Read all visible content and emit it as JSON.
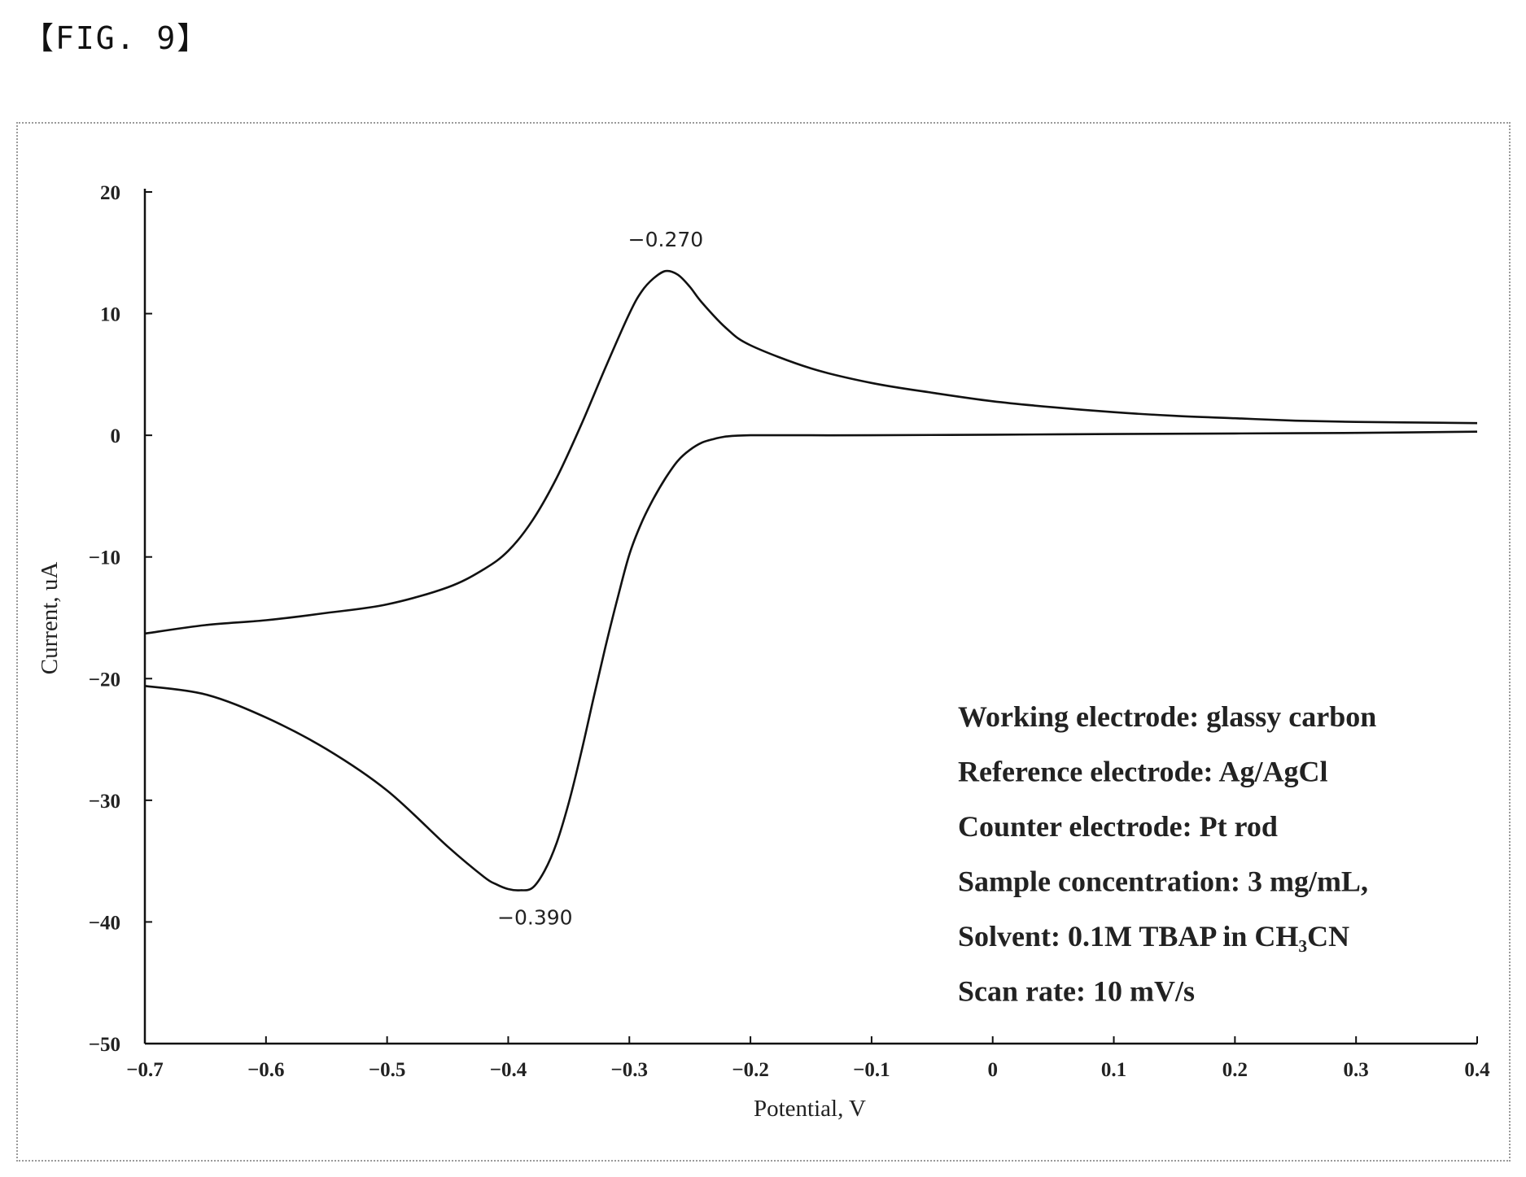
{
  "figure_label": "【FIG. 9】",
  "chart_data": {
    "type": "line",
    "xlabel": "Potential, V",
    "ylabel": "Current, uA",
    "xlim": [
      -0.7,
      0.4
    ],
    "ylim": [
      -50,
      20
    ],
    "x_ticks": [
      "−0.7",
      "−0.6",
      "−0.5",
      "−0.4",
      "−0.3",
      "−0.2",
      "−0.1",
      "0",
      "0.1",
      "0.2",
      "0.3",
      "0.4"
    ],
    "x_tick_values": [
      -0.7,
      -0.6,
      -0.5,
      -0.4,
      -0.3,
      -0.2,
      -0.1,
      0,
      0.1,
      0.2,
      0.3,
      0.4
    ],
    "y_ticks": [
      "20",
      "10",
      "0",
      "−10",
      "−20",
      "−30",
      "−40",
      "−50"
    ],
    "y_tick_values": [
      20,
      10,
      0,
      -10,
      -20,
      -30,
      -40,
      -50
    ],
    "grid": false,
    "series": [
      {
        "x": [
          -0.7,
          -0.65,
          -0.6,
          -0.55,
          -0.5,
          -0.45,
          -0.42,
          -0.4,
          -0.38,
          -0.36,
          -0.34,
          -0.32,
          -0.3,
          -0.29,
          -0.28,
          -0.27,
          -0.26,
          -0.25,
          -0.24,
          -0.22,
          -0.2,
          -0.15,
          -0.1,
          -0.05,
          0,
          0.05,
          0.1,
          0.15,
          0.2,
          0.25,
          0.3,
          0.35,
          0.4
        ],
        "y": [
          -16.3,
          -15.6,
          -15.2,
          -14.6,
          -13.9,
          -12.5,
          -11.0,
          -9.5,
          -7.0,
          -3.5,
          0.8,
          5.5,
          10.0,
          11.8,
          12.9,
          13.5,
          13.2,
          12.2,
          10.9,
          8.8,
          7.4,
          5.5,
          4.3,
          3.5,
          2.8,
          2.3,
          1.9,
          1.6,
          1.4,
          1.2,
          1.1,
          1.05,
          1.0
        ]
      },
      {
        "x": [
          -0.7,
          -0.65,
          -0.6,
          -0.55,
          -0.5,
          -0.45,
          -0.42,
          -0.41,
          -0.4,
          -0.39,
          -0.38,
          -0.37,
          -0.36,
          -0.35,
          -0.34,
          -0.33,
          -0.32,
          -0.31,
          -0.3,
          -0.29,
          -0.28,
          -0.27,
          -0.26,
          -0.25,
          -0.24,
          -0.23,
          -0.22,
          -0.2,
          -0.15,
          -0.1,
          0,
          0.1,
          0.2,
          0.3,
          0.4
        ],
        "y": [
          -20.6,
          -21.3,
          -23.2,
          -25.8,
          -29.2,
          -33.8,
          -36.3,
          -36.9,
          -37.3,
          -37.4,
          -37.2,
          -35.8,
          -33.5,
          -30.2,
          -26.2,
          -21.8,
          -17.5,
          -13.5,
          -9.8,
          -7.2,
          -5.2,
          -3.5,
          -2.1,
          -1.2,
          -0.6,
          -0.3,
          -0.1,
          0.0,
          0.0,
          0.0,
          0.05,
          0.1,
          0.15,
          0.2,
          0.3
        ]
      }
    ],
    "annotations": [
      {
        "text": "−0.270",
        "x": -0.27,
        "y": 13.5
      },
      {
        "text": "−0.390",
        "x": -0.39,
        "y": -37.4
      }
    ],
    "notes": [
      "Working electrode: glassy carbon",
      "Reference electrode: Ag/AgCl",
      "Counter electrode: Pt rod",
      "Sample concentration: 3 mg/mL,",
      "Solvent: 0.1M TBAP in CH₃CN",
      "Scan rate: 10 mV/s"
    ]
  }
}
